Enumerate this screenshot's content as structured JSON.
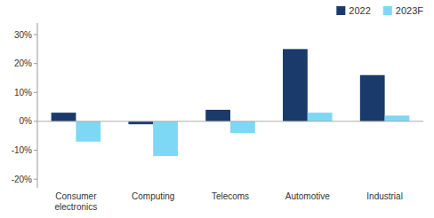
{
  "chart_data": {
    "type": "bar",
    "categories": [
      "Consumer\nelectronics",
      "Computing",
      "Telecoms",
      "Automotive",
      "Industrial"
    ],
    "series": [
      {
        "name": "2022",
        "color": "#1a3a6b",
        "values": [
          3,
          -1,
          4,
          25,
          16
        ]
      },
      {
        "name": "2023F",
        "color": "#7dd8f5",
        "values": [
          -7,
          -12,
          -4,
          3,
          2
        ]
      }
    ],
    "ylim": [
      -23,
      34
    ],
    "yticks": [
      {
        "value": -20,
        "label": "-20%"
      },
      {
        "value": -10,
        "label": "-10%"
      },
      {
        "value": 0,
        "label": "0%"
      },
      {
        "value": 10,
        "label": "10%"
      },
      {
        "value": 20,
        "label": "20%"
      },
      {
        "value": 30,
        "label": "30%"
      }
    ],
    "grid": false,
    "legend": "upper right"
  }
}
